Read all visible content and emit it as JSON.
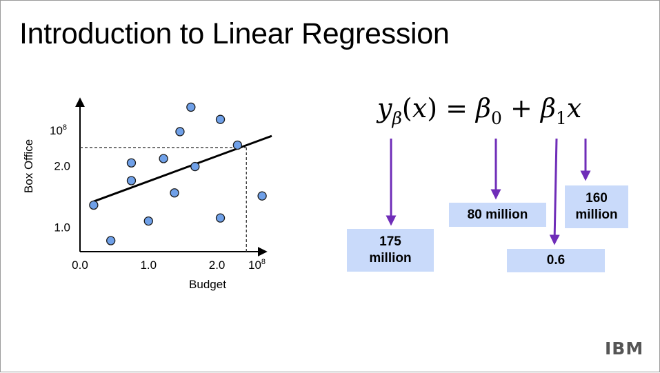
{
  "slide": {
    "title": "Introduction to Linear Regression",
    "logo_text": "IBM"
  },
  "chart_data": {
    "type": "scatter",
    "xlabel": "Budget",
    "ylabel": "Box Office",
    "xlim": [
      0,
      2.8
    ],
    "ylim": [
      0.6,
      3.1
    ],
    "x_ticks": [
      {
        "value": 0.0,
        "label": "0.0"
      },
      {
        "value": 1.0,
        "label": "1.0"
      },
      {
        "value": 2.0,
        "label": "2.0"
      }
    ],
    "x_exponent_label": {
      "base": "10",
      "exp": "8"
    },
    "y_ticks": [
      {
        "value": 1.0,
        "label": "1.0"
      },
      {
        "value": 2.0,
        "label": "2.0"
      }
    ],
    "y_exponent_label": {
      "base": "10",
      "exp": "8"
    },
    "points": [
      {
        "x": 0.2,
        "y": 1.36
      },
      {
        "x": 0.45,
        "y": 0.78
      },
      {
        "x": 0.75,
        "y": 2.05
      },
      {
        "x": 0.75,
        "y": 1.76
      },
      {
        "x": 1.0,
        "y": 1.1
      },
      {
        "x": 1.22,
        "y": 2.12
      },
      {
        "x": 1.38,
        "y": 1.56
      },
      {
        "x": 1.46,
        "y": 2.56
      },
      {
        "x": 1.62,
        "y": 2.96
      },
      {
        "x": 1.68,
        "y": 1.99
      },
      {
        "x": 2.05,
        "y": 2.76
      },
      {
        "x": 2.05,
        "y": 1.15
      },
      {
        "x": 2.3,
        "y": 2.34
      },
      {
        "x": 2.66,
        "y": 1.51
      }
    ],
    "regression_line": {
      "x": [
        0.2,
        2.8
      ],
      "y": [
        1.42,
        2.49
      ]
    },
    "reference_point": {
      "x": 2.43,
      "y": 2.3
    },
    "colors": {
      "point_fill": "#6fa0e8",
      "point_stroke": "#1a1a1a",
      "line": "#000000"
    }
  },
  "formula": {
    "y": "y",
    "y_sub": "β",
    "open": "(",
    "x_arg": "x",
    "close": ")",
    "equals": "=",
    "beta0": "β",
    "beta0_sub": "0",
    "plus": "+",
    "beta1": "β",
    "beta1_sub": "1",
    "x": "x"
  },
  "callouts": {
    "y_value": "175 million",
    "intercept": "80 million",
    "slope": "0.6",
    "x_value": "160 million"
  },
  "colors": {
    "callout_fill": "#c9dafa",
    "arrow": "#6f2db8"
  }
}
